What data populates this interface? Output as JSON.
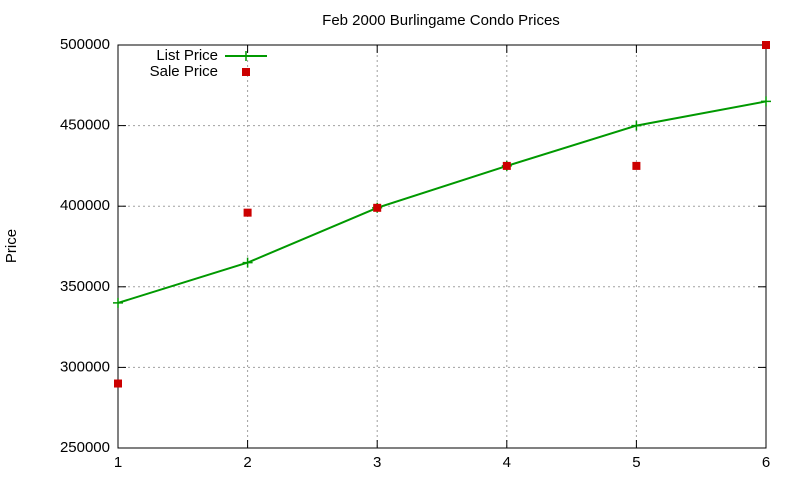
{
  "chart_data": {
    "type": "line",
    "title": "Feb 2000 Burlingame Condo Prices",
    "ylabel": "Price",
    "x": [
      1,
      2,
      3,
      4,
      5,
      6
    ],
    "series": [
      {
        "name": "List Price",
        "color": "#009900",
        "style": "linespoints",
        "values": [
          340000,
          365000,
          399000,
          425000,
          450000,
          465000
        ]
      },
      {
        "name": "Sale Price",
        "color": "#cc0000",
        "style": "points",
        "values": [
          290000,
          396000,
          399000,
          425000,
          425000,
          500000
        ]
      }
    ],
    "xlim": [
      1,
      6
    ],
    "xticks": [
      1,
      2,
      3,
      4,
      5,
      6
    ],
    "ylim": [
      250000,
      500000
    ],
    "yticks": [
      250000,
      300000,
      350000,
      400000,
      450000,
      500000
    ],
    "grid": true,
    "legend": "top-left"
  }
}
